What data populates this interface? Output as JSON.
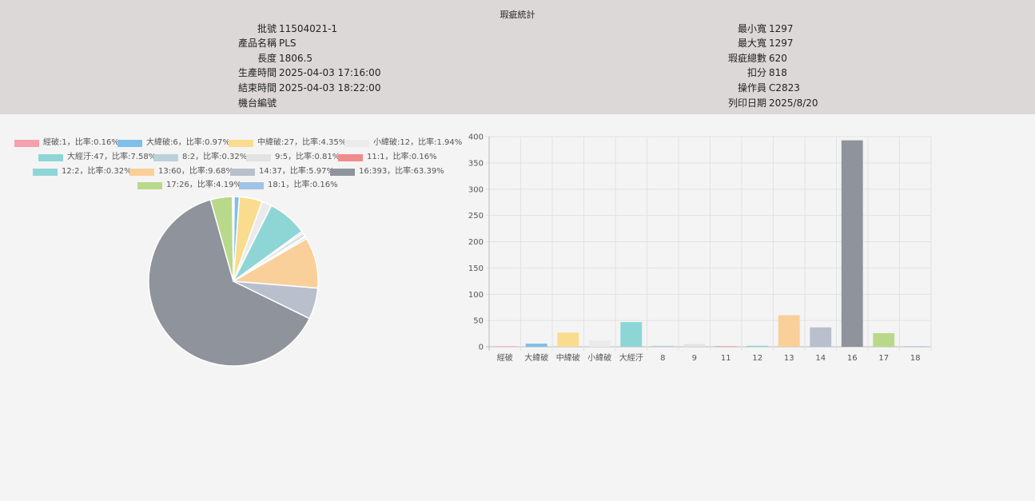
{
  "header": {
    "title": "瑕疵統計",
    "left": [
      {
        "label": "批號",
        "value": "11504021-1"
      },
      {
        "label": "產品名稱",
        "value": "PLS"
      },
      {
        "label": "長度",
        "value": "1806.5"
      },
      {
        "label": "生產時間",
        "value": "2025-04-03 17:16:00"
      },
      {
        "label": "結束時間",
        "value": "2025-04-03 18:22:00"
      },
      {
        "label": "機台編號",
        "value": ""
      }
    ],
    "right": [
      {
        "label": "最小寬",
        "value": "1297"
      },
      {
        "label": "最大寬",
        "value": "1297"
      },
      {
        "label": "瑕疵總數",
        "value": "620"
      },
      {
        "label": "扣分",
        "value": "818"
      },
      {
        "label": "操作員",
        "value": "C2823"
      },
      {
        "label": "列印日期",
        "value": "2025/8/20"
      }
    ]
  },
  "chart_data": [
    {
      "type": "pie",
      "legend_position": "top",
      "slices": [
        {
          "name": "經破",
          "value": 1,
          "ratio": "0.16%",
          "color": "#f4a0ad",
          "legend": "經破:1，比率:0.16%"
        },
        {
          "name": "大緯破",
          "value": 6,
          "ratio": "0.97%",
          "color": "#7fbfe9",
          "legend": "大緯破:6，比率:0.97%"
        },
        {
          "name": "中緯破",
          "value": 27,
          "ratio": "4.35%",
          "color": "#f9dc8e",
          "legend": "中緯破:27，比率:4.35%"
        },
        {
          "name": "小緯破",
          "value": 12,
          "ratio": "1.94%",
          "color": "#ebebeb",
          "legend": "小緯破:12，比率:1.94%"
        },
        {
          "name": "大經汙",
          "value": 47,
          "ratio": "7.58%",
          "color": "#8ed6d6",
          "legend": "大經汙:47，比率:7.58%"
        },
        {
          "name": "8",
          "value": 2,
          "ratio": "0.32%",
          "color": "#bcd0dc",
          "legend": "8:2，比率:0.32%"
        },
        {
          "name": "9",
          "value": 5,
          "ratio": "0.81%",
          "color": "#e2e2e2",
          "legend": "9:5，比率:0.81%"
        },
        {
          "name": "11",
          "value": 1,
          "ratio": "0.16%",
          "color": "#f08c8c",
          "legend": "11:1，比率:0.16%"
        },
        {
          "name": "12",
          "value": 2,
          "ratio": "0.32%",
          "color": "#8ed6d6",
          "legend": "12:2，比率:0.32%"
        },
        {
          "name": "13",
          "value": 60,
          "ratio": "9.68%",
          "color": "#f9cf9a",
          "legend": "13:60，比率:9.68%"
        },
        {
          "name": "14",
          "value": 37,
          "ratio": "5.97%",
          "color": "#b9bfcc",
          "legend": "14:37，比率:5.97%"
        },
        {
          "name": "16",
          "value": 393,
          "ratio": "63.39%",
          "color": "#8f939b",
          "legend": "16:393，比率:63.39%"
        },
        {
          "name": "17",
          "value": 26,
          "ratio": "4.19%",
          "color": "#b9d98a",
          "legend": "17:26，比率:4.19%"
        },
        {
          "name": "18",
          "value": 1,
          "ratio": "0.16%",
          "color": "#9fc4e6",
          "legend": "18:1，比率:0.16%"
        }
      ]
    },
    {
      "type": "bar",
      "categories": [
        "經破",
        "大緯破",
        "中緯破",
        "小緯破",
        "大經汙",
        "8",
        "9",
        "11",
        "12",
        "13",
        "14",
        "16",
        "17",
        "18"
      ],
      "values": [
        1,
        6,
        27,
        12,
        47,
        2,
        5,
        1,
        2,
        60,
        37,
        393,
        26,
        1
      ],
      "colors": [
        "#f4a0ad",
        "#7fbfe9",
        "#f9dc8e",
        "#ebebeb",
        "#8ed6d6",
        "#bcd0dc",
        "#e2e2e2",
        "#f08c8c",
        "#8ed6d6",
        "#f9cf9a",
        "#b9bfcc",
        "#8f939b",
        "#b9d98a",
        "#9fc4e6"
      ],
      "yticks": [
        "0",
        "50",
        "100",
        "150",
        "200",
        "250",
        "300",
        "350",
        "400"
      ],
      "ylim": [
        0,
        400
      ],
      "grid": true
    }
  ]
}
